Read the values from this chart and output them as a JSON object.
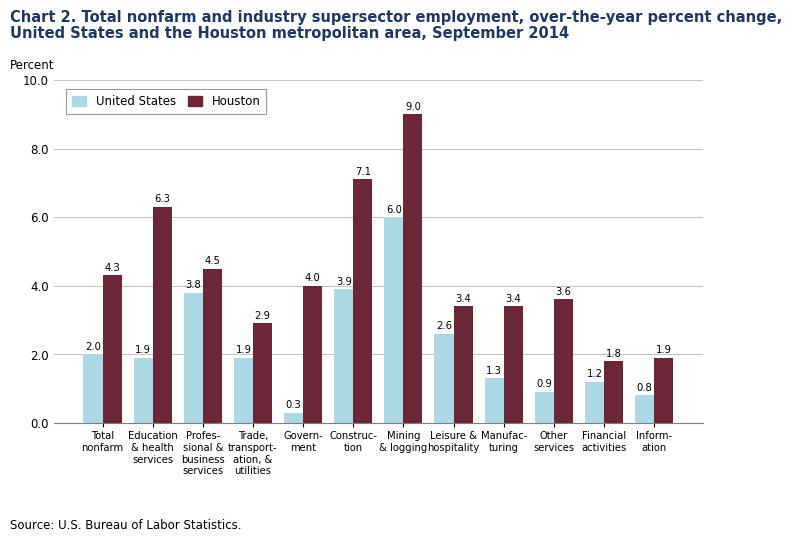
{
  "title_line1": "Chart 2. Total nonfarm and industry supersector employment, over-the-year percent change,",
  "title_line2": "United States and the Houston metropolitan area, September 2014",
  "ylabel": "Percent",
  "source": "Source: U.S. Bureau of Labor Statistics.",
  "categories": [
    "Total\nnonfarm",
    "Education\n& health\nservices",
    "Profes-\nsional &\nbusiness\nservices",
    "Trade,\ntransport-\nation, &\nutilities",
    "Govern-\nment",
    "Construc-\ntion",
    "Mining\n& logging",
    "Leisure &\nhospitality",
    "Manufac-\nturing",
    "Other\nservices",
    "Financial\nactivities",
    "Inform-\nation"
  ],
  "us_values": [
    2.0,
    1.9,
    3.8,
    1.9,
    0.3,
    3.9,
    6.0,
    2.6,
    1.3,
    0.9,
    1.2,
    0.8
  ],
  "houston_values": [
    4.3,
    6.3,
    4.5,
    2.9,
    4.0,
    7.1,
    9.0,
    3.4,
    3.4,
    3.6,
    1.8,
    1.9
  ],
  "us_color": "#ADD8E6",
  "houston_color": "#6B2737",
  "ylim": [
    0,
    10.0
  ],
  "yticks": [
    0.0,
    2.0,
    4.0,
    6.0,
    8.0,
    10.0
  ],
  "legend_labels": [
    "United States",
    "Houston"
  ],
  "bar_width": 0.38,
  "title_fontsize": 10.5,
  "axis_fontsize": 8.5,
  "tick_fontsize": 8.5,
  "label_fontsize": 7.2,
  "value_fontsize": 7.2
}
